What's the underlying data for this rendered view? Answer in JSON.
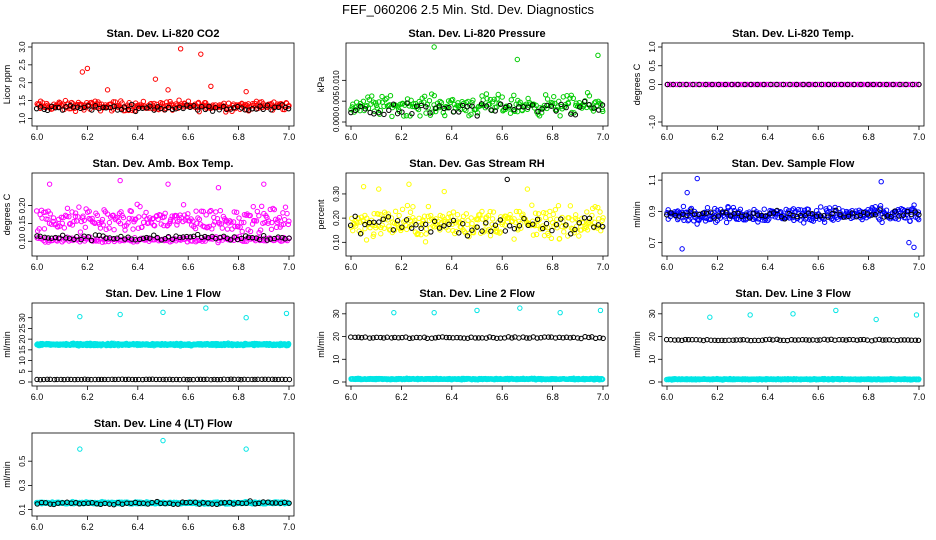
{
  "page": {
    "title": "FEF_060206  2.5 Min. Std. Dev. Diagnostics"
  },
  "chart_data": [
    {
      "type": "scatter",
      "title": "Stan. Dev. Li-820 CO2",
      "xlabel": "",
      "ylabel": "Licor ppm",
      "xlim": [
        6.0,
        7.0
      ],
      "ylim": [
        0.9,
        3.0
      ],
      "xticks": [
        "6.0",
        "6.2",
        "6.4",
        "6.6",
        "6.8",
        "7.0"
      ],
      "yticks": [
        "1.0",
        "1.5",
        "2.0",
        "2.5",
        "3.0"
      ],
      "series": [
        {
          "name": "colored",
          "color": "#ff0000",
          "base": 1.35,
          "spread": 0.2,
          "count": 260,
          "outliers": [
            [
              6.18,
              2.3
            ],
            [
              6.2,
              2.4
            ],
            [
              6.47,
              2.1
            ],
            [
              6.52,
              1.8
            ],
            [
              6.57,
              2.95
            ],
            [
              6.65,
              2.8
            ],
            [
              6.69,
              1.9
            ],
            [
              6.28,
              1.8
            ],
            [
              6.83,
              1.75
            ]
          ]
        },
        {
          "name": "black",
          "color": "#000000",
          "base": 1.3,
          "spread": 0.12,
          "count": 70,
          "outliers": []
        }
      ]
    },
    {
      "type": "scatter",
      "title": "Stan. Dev. Li-820 Pressure",
      "xlabel": "",
      "ylabel": "kPa",
      "xlim": [
        6.0,
        7.0
      ],
      "ylim": [
        0.0,
        0.018
      ],
      "xticks": [
        "6.0",
        "6.2",
        "6.4",
        "6.6",
        "6.8",
        "7.0"
      ],
      "yticks": [
        "0.000",
        "0.005",
        "0.010"
      ],
      "series": [
        {
          "name": "colored",
          "color": "#00cc00",
          "base": 0.004,
          "spread": 0.0035,
          "count": 230,
          "outliers": [
            [
              6.33,
              0.018
            ],
            [
              6.66,
              0.015
            ],
            [
              6.98,
              0.016
            ]
          ]
        },
        {
          "name": "black",
          "color": "#000000",
          "base": 0.003,
          "spread": 0.0025,
          "count": 55,
          "outliers": []
        }
      ]
    },
    {
      "type": "scatter",
      "title": "Stan. Dev. Li-820 Temp.",
      "xlabel": "",
      "ylabel": "degrees C",
      "xlim": [
        6.0,
        7.0
      ],
      "ylim": [
        -1.0,
        1.0
      ],
      "xticks": [
        "6.0",
        "6.2",
        "6.4",
        "6.6",
        "6.8",
        "7.0"
      ],
      "yticks": [
        "-1.0",
        "0.0",
        "0.5",
        "1.0"
      ],
      "series": [
        {
          "name": "colored",
          "color": "#ff00ff",
          "base": 0.0,
          "spread": 0.0,
          "count": 120,
          "outliers": []
        },
        {
          "name": "black",
          "color": "#000000",
          "base": 0.0,
          "spread": 0.0,
          "count": 40,
          "outliers": []
        }
      ]
    },
    {
      "type": "scatter",
      "title": "Stan. Dev. Amb. Box Temp.",
      "xlabel": "",
      "ylabel": "degrees C",
      "xlim": [
        6.0,
        7.0
      ],
      "ylim": [
        0.07,
        0.28
      ],
      "xticks": [
        "6.0",
        "6.2",
        "6.4",
        "6.6",
        "6.8",
        "7.0"
      ],
      "yticks": [
        "0.10",
        "0.15",
        "0.20"
      ],
      "series": [
        {
          "name": "colored",
          "color": "#ff00ff",
          "base": 0.16,
          "spread": 0.05,
          "count": 240,
          "outliers": [
            [
              6.05,
              0.26
            ],
            [
              6.33,
              0.27
            ],
            [
              6.52,
              0.26
            ],
            [
              6.72,
              0.25
            ],
            [
              6.9,
              0.26
            ]
          ]
        },
        {
          "name": "colored-low",
          "color": "#ff00ff",
          "base": 0.105,
          "spread": 0.012,
          "count": 160,
          "outliers": []
        },
        {
          "name": "black",
          "color": "#000000",
          "base": 0.11,
          "spread": 0.012,
          "count": 70,
          "outliers": []
        }
      ]
    },
    {
      "type": "scatter",
      "title": "Stan. Dev. Gas Stream RH",
      "xlabel": "",
      "ylabel": "percent",
      "xlim": [
        6.0,
        7.0
      ],
      "ylim": [
        0.06,
        0.37
      ],
      "xticks": [
        "6.0",
        "6.2",
        "6.4",
        "6.6",
        "6.8",
        "7.0"
      ],
      "yticks": [
        "0.10",
        "0.20",
        "0.30"
      ],
      "series": [
        {
          "name": "colored",
          "color": "#ffff00",
          "base": 0.18,
          "spread": 0.09,
          "count": 300,
          "outliers": [
            [
              6.05,
              0.33
            ],
            [
              6.11,
              0.32
            ],
            [
              6.23,
              0.34
            ],
            [
              6.37,
              0.31
            ],
            [
              6.7,
              0.32
            ]
          ]
        },
        {
          "name": "black",
          "color": "#000000",
          "base": 0.17,
          "spread": 0.06,
          "count": 55,
          "outliers": [
            [
              6.62,
              0.36
            ]
          ]
        }
      ]
    },
    {
      "type": "scatter",
      "title": "Stan. Dev. Sample Flow",
      "xlabel": "",
      "ylabel": "ml/min",
      "xlim": [
        6.0,
        7.0
      ],
      "ylim": [
        0.64,
        1.12
      ],
      "xticks": [
        "6.0",
        "6.2",
        "6.4",
        "6.6",
        "6.8",
        "7.0"
      ],
      "yticks": [
        "0.7",
        "0.9",
        "1.1"
      ],
      "series": [
        {
          "name": "colored",
          "color": "#0000ff",
          "base": 0.88,
          "spread": 0.07,
          "count": 320,
          "outliers": [
            [
              6.12,
              1.11
            ],
            [
              6.08,
              1.02
            ],
            [
              6.85,
              1.09
            ],
            [
              6.98,
              0.67
            ],
            [
              6.96,
              0.7
            ],
            [
              6.06,
              0.66
            ]
          ]
        },
        {
          "name": "black",
          "color": "#000000",
          "base": 0.88,
          "spread": 0.035,
          "count": 65,
          "outliers": []
        }
      ]
    },
    {
      "type": "scatter",
      "title": "Stan. Dev. Line 1 Flow",
      "xlabel": "",
      "ylabel": "ml/min",
      "xlim": [
        6.0,
        7.0
      ],
      "ylim": [
        0,
        35
      ],
      "xticks": [
        "6.0",
        "6.2",
        "6.4",
        "6.6",
        "6.8",
        "7.0"
      ],
      "yticks": [
        "0",
        "5",
        "10",
        "15",
        "20",
        "25",
        "30"
      ],
      "series": [
        {
          "name": "colored",
          "color": "#00e5e5",
          "base": 17.5,
          "spread": 0.8,
          "count": 520,
          "outliers": [
            [
              6.17,
              30.5
            ],
            [
              6.33,
              31.5
            ],
            [
              6.5,
              32.5
            ],
            [
              6.67,
              34.5
            ],
            [
              6.83,
              30
            ],
            [
              6.99,
              32
            ]
          ]
        },
        {
          "name": "black",
          "color": "#000000",
          "base": 1.2,
          "spread": 0.15,
          "count": 75,
          "outliers": []
        }
      ]
    },
    {
      "type": "scatter",
      "title": "Stan. Dev. Line 2 Flow",
      "xlabel": "",
      "ylabel": "ml/min",
      "xlim": [
        6.0,
        7.0
      ],
      "ylim": [
        0,
        33
      ],
      "xticks": [
        "6.0",
        "6.2",
        "6.4",
        "6.6",
        "6.8",
        "7.0"
      ],
      "yticks": [
        "0",
        "10",
        "20",
        "30"
      ],
      "series": [
        {
          "name": "colored",
          "color": "#00e5e5",
          "base": 1.3,
          "spread": 0.4,
          "count": 500,
          "outliers": [
            [
              6.17,
              30.5
            ],
            [
              6.33,
              30.5
            ],
            [
              6.5,
              31.5
            ],
            [
              6.67,
              32.5
            ],
            [
              6.83,
              30.5
            ],
            [
              6.99,
              31.5
            ]
          ]
        },
        {
          "name": "black",
          "color": "#000000",
          "base": 19.5,
          "spread": 0.6,
          "count": 70,
          "outliers": []
        }
      ]
    },
    {
      "type": "scatter",
      "title": "Stan. Dev. Line 3 Flow",
      "xlabel": "",
      "ylabel": "ml/min",
      "xlim": [
        6.0,
        7.0
      ],
      "ylim": [
        0,
        33
      ],
      "xticks": [
        "6.0",
        "6.2",
        "6.4",
        "6.6",
        "6.8",
        "7.0"
      ],
      "yticks": [
        "0",
        "10",
        "20",
        "30"
      ],
      "series": [
        {
          "name": "colored",
          "color": "#00e5e5",
          "base": 1.2,
          "spread": 0.35,
          "count": 500,
          "outliers": [
            [
              6.17,
              28.5
            ],
            [
              6.33,
              29.5
            ],
            [
              6.5,
              30
            ],
            [
              6.67,
              31.5
            ],
            [
              6.83,
              27.5
            ],
            [
              6.99,
              29.5
            ]
          ]
        },
        {
          "name": "black",
          "color": "#000000",
          "base": 18.5,
          "spread": 0.5,
          "count": 70,
          "outliers": []
        }
      ]
    },
    {
      "type": "scatter",
      "title": "Stan. Dev. Line 4 (LT) Flow",
      "xlabel": "",
      "ylabel": "ml/min",
      "xlim": [
        6.0,
        7.0
      ],
      "ylim": [
        0.08,
        0.7
      ],
      "xticks": [
        "6.0",
        "6.2",
        "6.4",
        "6.6",
        "6.8",
        "7.0"
      ],
      "yticks": [
        "0.1",
        "0.3",
        "0.5"
      ],
      "series": [
        {
          "name": "colored",
          "color": "#00e5e5",
          "base": 0.155,
          "spread": 0.012,
          "count": 520,
          "outliers": [
            [
              6.17,
              0.6
            ],
            [
              6.5,
              0.67
            ],
            [
              6.83,
              0.6
            ]
          ]
        },
        {
          "name": "black",
          "color": "#000000",
          "base": 0.155,
          "spread": 0.018,
          "count": 60,
          "outliers": []
        }
      ]
    }
  ]
}
